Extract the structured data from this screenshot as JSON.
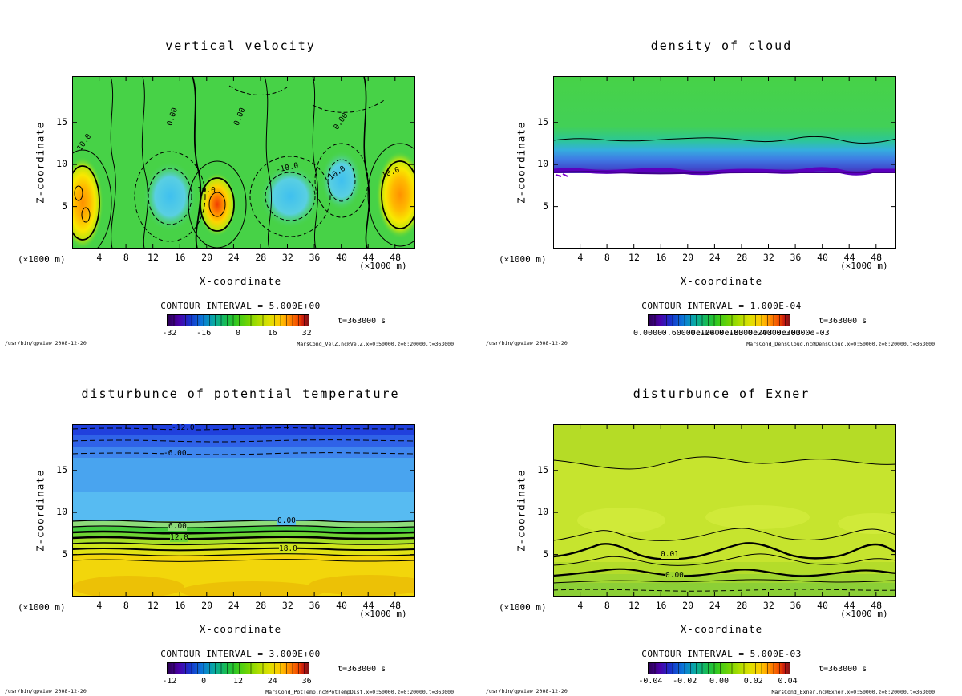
{
  "axis": {
    "x_label": "X-coordinate",
    "y_label": "Z-coordinate",
    "unit": "(×1000 m)",
    "x_ticks": [
      "4",
      "8",
      "12",
      "16",
      "20",
      "24",
      "28",
      "32",
      "36",
      "40",
      "44",
      "48"
    ],
    "y_ticks": [
      "15",
      "10",
      "5"
    ]
  },
  "panels": [
    {
      "title": "vertical velocity",
      "contour_interval": "CONTOUR INTERVAL = 5.000E+00",
      "time": "t=363000 s",
      "colorbar_ticks": [
        "-32",
        "-16",
        "0",
        "16",
        "32"
      ],
      "footer_left": "/usr/bin/gpview  2008-12-20",
      "footer_right": "MarsCond_VelZ.nc@VelZ,x=0:50000,z=0:20000,t=363000",
      "contour_labels": [
        "10.0",
        "0.00",
        "0.00",
        "10.0",
        "-10.0",
        "-10.0",
        "0.00",
        "10.0"
      ]
    },
    {
      "title": "density of cloud",
      "contour_interval": "CONTOUR INTERVAL = 1.000E-04",
      "time": "t=363000 s",
      "colorbar_ticks": [
        "0.0000",
        "0.60000e-04",
        "0.12000e-03",
        "0.18000e-03",
        "0.24000e-03",
        "0.30000e-03"
      ],
      "footer_left": "/usr/bin/gpview  2008-12-20",
      "footer_right": "MarsCond_DensCloud.nc@DensCloud,x=0:50000,z=0:20000,t=363000",
      "contour_labels": []
    },
    {
      "title": "disturbunce of potential temperature",
      "contour_interval": "CONTOUR INTERVAL = 3.000E+00",
      "time": "t=363000 s",
      "colorbar_ticks": [
        "-12",
        "0",
        "12",
        "24",
        "36"
      ],
      "footer_left": "/usr/bin/gpview  2008-12-20",
      "footer_right": "MarsCond_PotTemp.nc@PotTempDist,x=0:50000,z=0:20000,t=363000",
      "contour_labels": [
        "-12.0",
        "-6.00",
        "0.00",
        "6.00",
        "12.0",
        "18.0"
      ]
    },
    {
      "title": "disturbunce of Exner",
      "contour_interval": "CONTOUR INTERVAL = 5.000E-03",
      "time": "t=363000 s",
      "colorbar_ticks": [
        "-0.04",
        "-0.02",
        "0.00",
        "0.02",
        "0.04"
      ],
      "footer_left": "/usr/bin/gpview  2008-12-20",
      "footer_right": "MarsCond_Exner.nc@Exner,x=0:50000,z=0:20000,t=363000",
      "contour_labels": [
        "0.01",
        "0.00"
      ]
    }
  ],
  "chart_data": [
    {
      "type": "heatmap",
      "title": "vertical velocity",
      "xlabel": "X-coordinate (×1000 m)",
      "ylabel": "Z-coordinate (×1000 m)",
      "x_range": [
        0,
        51
      ],
      "z_range": [
        0,
        20.5
      ],
      "x_ticks": [
        4,
        8,
        12,
        16,
        20,
        24,
        28,
        32,
        36,
        40,
        44,
        48
      ],
      "z_ticks": [
        5,
        10,
        15
      ],
      "contour_interval": 5.0,
      "labeled_contour_values": [
        -10.0,
        0.0,
        10.0
      ],
      "colorbar_ticks": [
        -32,
        -16,
        0,
        16,
        32
      ],
      "time_s": 363000,
      "features": [
        {
          "feature": "updraft core",
          "x": 2,
          "z": 5.5,
          "approx_max": 30
        },
        {
          "feature": "updraft core",
          "x": 21.5,
          "z": 5,
          "approx_max": 35
        },
        {
          "feature": "updraft core",
          "x": 48.5,
          "z": 6,
          "approx_max": 25
        },
        {
          "feature": "downdraft",
          "x": 14.5,
          "z": 6,
          "approx_min": -15
        },
        {
          "feature": "downdraft",
          "x": 32.5,
          "z": 6,
          "approx_min": -15
        },
        {
          "feature": "downdraft",
          "x": 40,
          "z": 7.5,
          "approx_min": -12
        },
        {
          "feature": "background field",
          "value": 0
        }
      ]
    },
    {
      "type": "heatmap",
      "title": "density of cloud",
      "x_range": [
        0,
        51
      ],
      "z_range": [
        0,
        20.5
      ],
      "contour_interval": 0.0001,
      "colorbar_ticks": [
        0.0,
        6e-05,
        0.00012,
        0.00018,
        0.00024,
        0.0003
      ],
      "time_s": 363000,
      "features": [
        {
          "feature": "clear air",
          "z_from": 0,
          "z_to": 9.2,
          "value": 0
        },
        {
          "feature": "cloud layer",
          "z_from": 9.2,
          "z_to": 13.3,
          "gradient": "density increases downward from ~0 at cloud top (green) to maximum at cloud base (blue/purple)"
        },
        {
          "feature": "cloud base maximum",
          "z": 9.2,
          "approx_max": 0.0003
        }
      ]
    },
    {
      "type": "heatmap",
      "title": "disturbunce of potential temperature",
      "x_range": [
        0,
        51
      ],
      "z_range": [
        0,
        20.5
      ],
      "contour_interval": 3.0,
      "labeled_contour_values": [
        -12.0,
        -6.0,
        0.0,
        6.0,
        12.0,
        18.0
      ],
      "colorbar_ticks": [
        -12,
        0,
        12,
        24,
        36
      ],
      "time_s": 363000,
      "features": [
        {
          "feature": "cold anomaly aloft",
          "z_from": 9,
          "z_to": 20.5,
          "range": "-12 to 0, horizontally uniform"
        },
        {
          "feature": "zero contour",
          "z": 8.8
        },
        {
          "feature": "warm anomaly below",
          "z_from": 0,
          "z_to": 8.8,
          "range": "0 to >18, maximum near surface (yellow)"
        }
      ]
    },
    {
      "type": "heatmap",
      "title": "disturbunce of Exner",
      "x_range": [
        0,
        51
      ],
      "z_range": [
        0,
        20.5
      ],
      "contour_interval": 0.005,
      "labeled_contour_values": [
        0.0,
        0.01
      ],
      "colorbar_ticks": [
        -0.04,
        -0.02,
        0.0,
        0.02,
        0.04
      ],
      "time_s": 363000,
      "features": [
        {
          "feature": "0.01 contour",
          "z_approx": 5,
          "shape": "wavy, crests near x=6, 27, 45"
        },
        {
          "feature": "0.00 contour",
          "z_approx": 2.8,
          "shape": "wavy"
        },
        {
          "feature": "upper contour",
          "z_approx": 15.5,
          "shape": "gently wavy"
        }
      ]
    }
  ]
}
